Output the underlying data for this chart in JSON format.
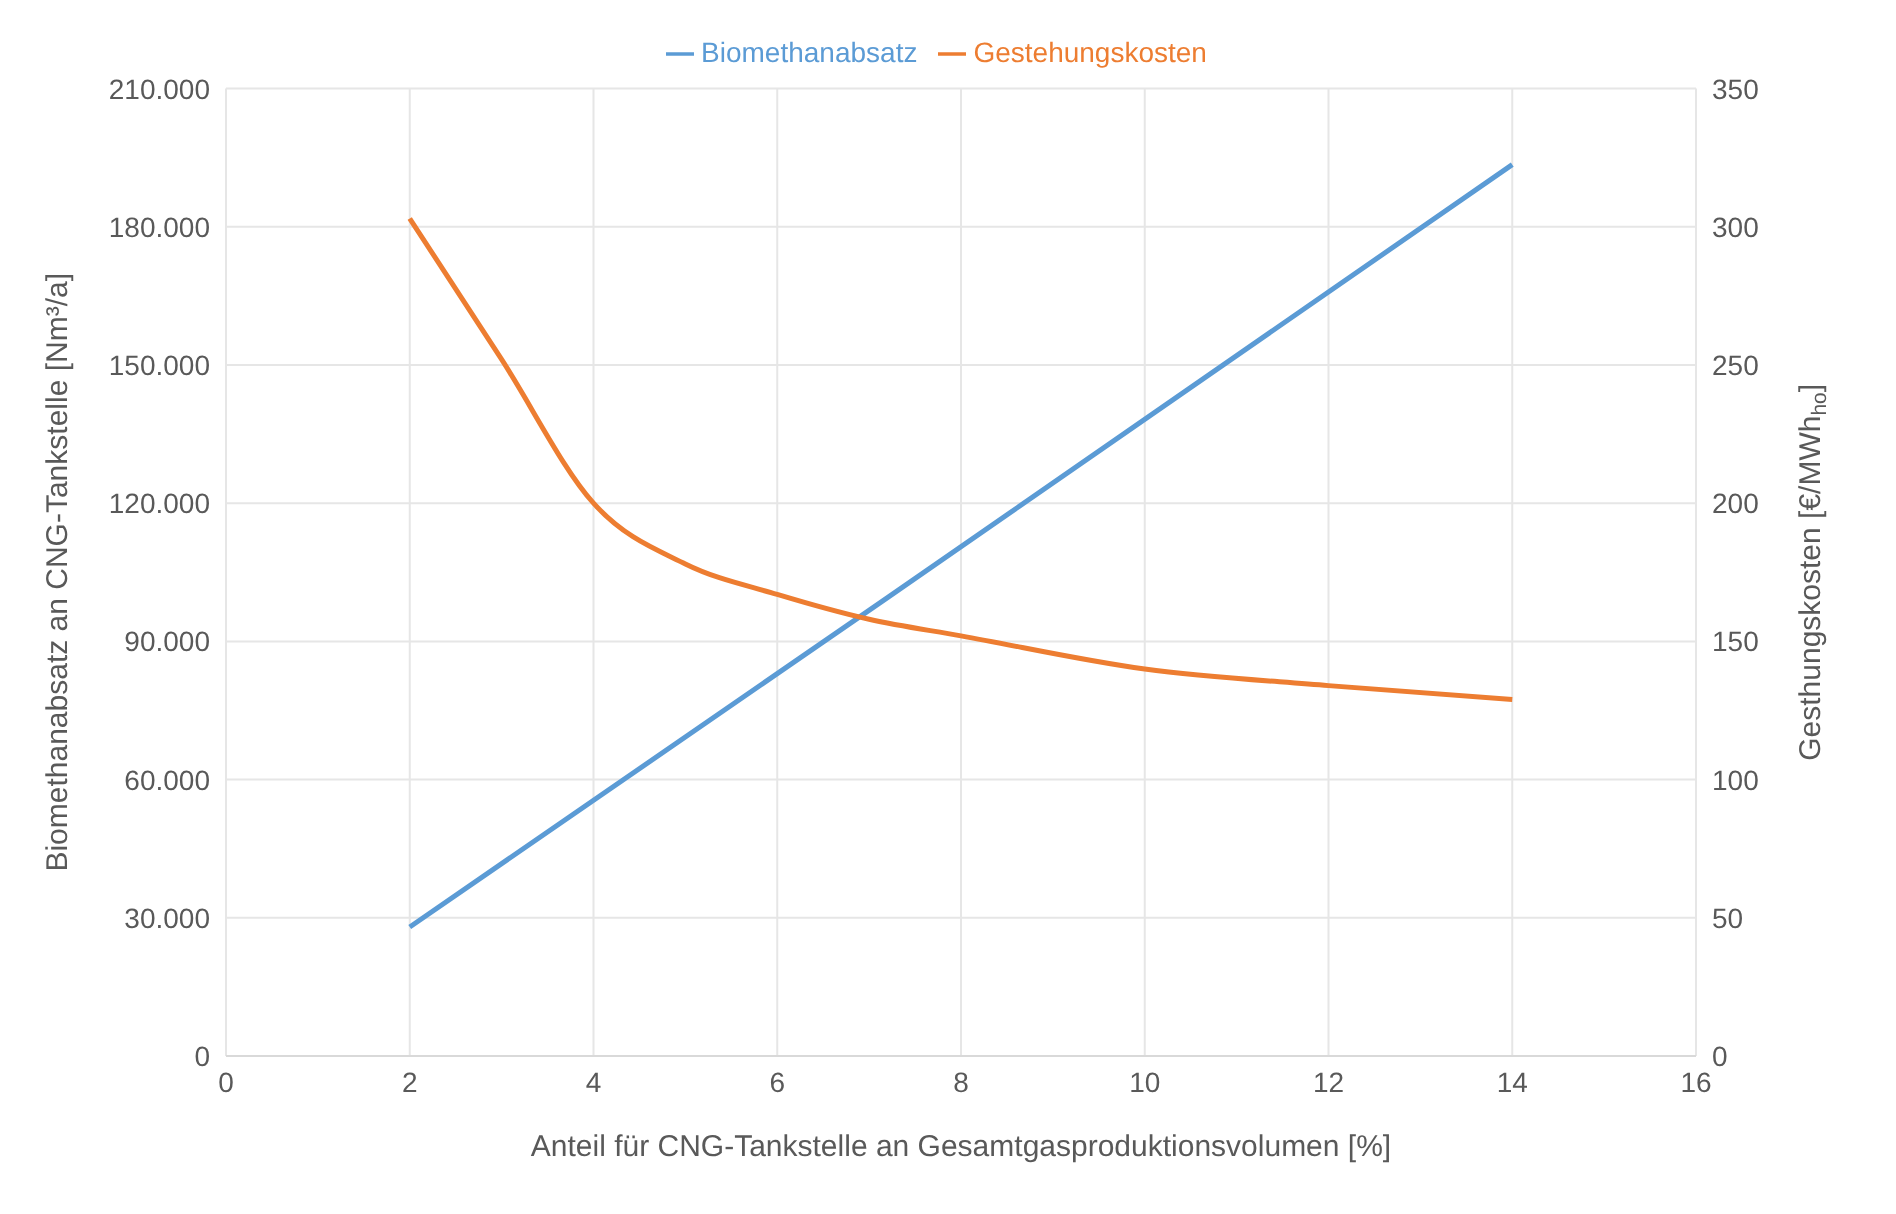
{
  "chart_data": {
    "type": "line",
    "xlabel": "Anteil für CNG-Tankstelle an Gesamtgasproduktionsvolumen [%]",
    "ylabel": "Biomethanabsatz an CNG-Tankstelle [Nm³/a]",
    "y2label": "Gesthungskosten [€/MWh$_{ho}$]",
    "xlim": [
      0,
      16
    ],
    "xticks": [
      0,
      2,
      4,
      6,
      8,
      10,
      12,
      14,
      16
    ],
    "ylim": [
      0,
      210000
    ],
    "yticks": [
      {
        "value": 0,
        "label": "0"
      },
      {
        "value": 30000,
        "label": "30.000"
      },
      {
        "value": 60000,
        "label": "60.000"
      },
      {
        "value": 90000,
        "label": "90.000"
      },
      {
        "value": 120000,
        "label": "120.000"
      },
      {
        "value": 150000,
        "label": "150.000"
      },
      {
        "value": 180000,
        "label": "180.000"
      },
      {
        "value": 210000,
        "label": "210.000"
      }
    ],
    "y2lim": [
      0,
      350
    ],
    "y2ticks": [
      0,
      50,
      100,
      150,
      200,
      250,
      300,
      350
    ],
    "grid": true,
    "legend": "top",
    "marker": "none",
    "line_style": "solid",
    "series": [
      {
        "name": "Biomethanabsatz",
        "color": "#5b9bd5",
        "x": [
          2,
          7.2,
          14
        ],
        "values": [
          28000,
          99500,
          193500
        ]
      },
      {
        "name": "Gestehungskosten",
        "color": "#ed7d31",
        "axis": "y2",
        "x": [
          2,
          3,
          4,
          5,
          6,
          7,
          8,
          10,
          12,
          14
        ],
        "values": [
          303,
          252,
          200,
          178,
          167,
          158,
          152,
          140,
          134,
          129
        ]
      }
    ]
  }
}
